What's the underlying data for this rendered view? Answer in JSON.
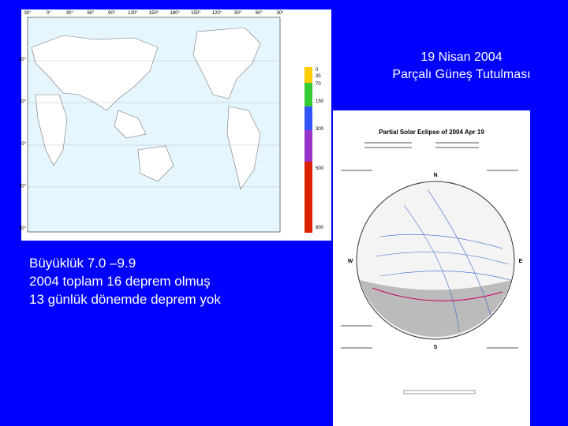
{
  "slide": {
    "title_lines": [
      "19 Nisan 2004",
      "Parçalı Güneş Tutulması"
    ],
    "body_lines": [
      "Büyüklük 7.0 –9.9",
      "2004 toplam 16 deprem olmuş",
      "13 günlük dönemde deprem yok"
    ],
    "map": {
      "top_labels": [
        "30°",
        "0°",
        "30°",
        "60°",
        "90°",
        "120°",
        "150°",
        "180°",
        "150°",
        "120°",
        "90°",
        "60°",
        "30°"
      ],
      "left_labels": [
        "60°",
        "30°",
        "0°",
        "30°",
        "60°"
      ],
      "depth_labels": [
        "0",
        "35",
        "70",
        "150",
        "300",
        "500",
        "800"
      ]
    },
    "eclipse": {
      "title": "Partial Solar Eclipse of 2004 Apr 19",
      "directions": {
        "north": "N",
        "south": "S",
        "west": "W",
        "east": "E"
      }
    }
  }
}
